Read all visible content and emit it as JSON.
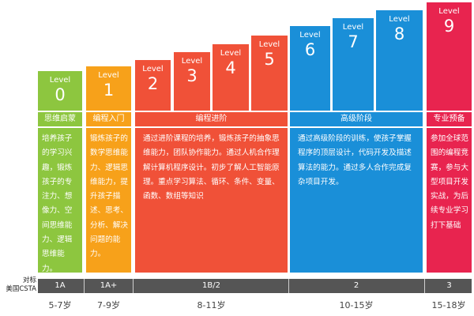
{
  "levels": [
    {
      "word": "Level",
      "num": "0",
      "color": "#8dc63f"
    },
    {
      "word": "Level",
      "num": "1",
      "color": "#f7a11a"
    },
    {
      "word": "Level",
      "num": "2",
      "color": "#f05138"
    },
    {
      "word": "Level",
      "num": "3",
      "color": "#f05138"
    },
    {
      "word": "Level",
      "num": "4",
      "color": "#f05138"
    },
    {
      "word": "Level",
      "num": "5",
      "color": "#f05138"
    },
    {
      "word": "Level",
      "num": "6",
      "color": "#1a8fd8"
    },
    {
      "word": "Level",
      "num": "7",
      "color": "#1a8fd8"
    },
    {
      "word": "Level",
      "num": "8",
      "color": "#1a8fd8"
    },
    {
      "word": "Level",
      "num": "9",
      "color": "#e8244f"
    }
  ],
  "stages": [
    {
      "title": "思维启蒙",
      "description": "培养孩子的学习兴趣，锻炼孩子的专注力、想像力、空间思维能力、逻辑思维能力。",
      "color": "#8dc63f"
    },
    {
      "title": "编程入门",
      "description": "锻炼孩子的数学思维能力、逻辑思维能力，提升孩子描述、思考、分析、解决问题的能力。",
      "color": "#f7a11a"
    },
    {
      "title": "编程进阶",
      "description": "通过进阶课程的培养，锻炼孩子的抽象思维能力，团队协作能力。通过人机合作理解计算机程序设计。初步了解人工智能原理。重点学习算法、循环、条件、变量、函数、数组等知识",
      "color": "#f05138"
    },
    {
      "title": "高级阶段",
      "description": "通过高级阶段的训练，使孩子掌握程序的顶层设计，代码开发及描述算法的能力。通过多人合作完成复杂项目开发。",
      "color": "#1a8fd8"
    },
    {
      "title": "专业预备",
      "description": "参加全球范围的编程竞赛，参与大型项目开发实战，为后续专业学习打下基础",
      "color": "#e8244f"
    }
  ],
  "csta": {
    "label_line1": "对标",
    "label_line2": "美国CSTA",
    "values": [
      "1A",
      "1A+",
      "1B/2",
      "2",
      "3"
    ],
    "bar_color": "#555555"
  },
  "ages": [
    "5-7岁",
    "7-9岁",
    "8-11岁",
    "10-15岁",
    "15-18岁"
  ]
}
